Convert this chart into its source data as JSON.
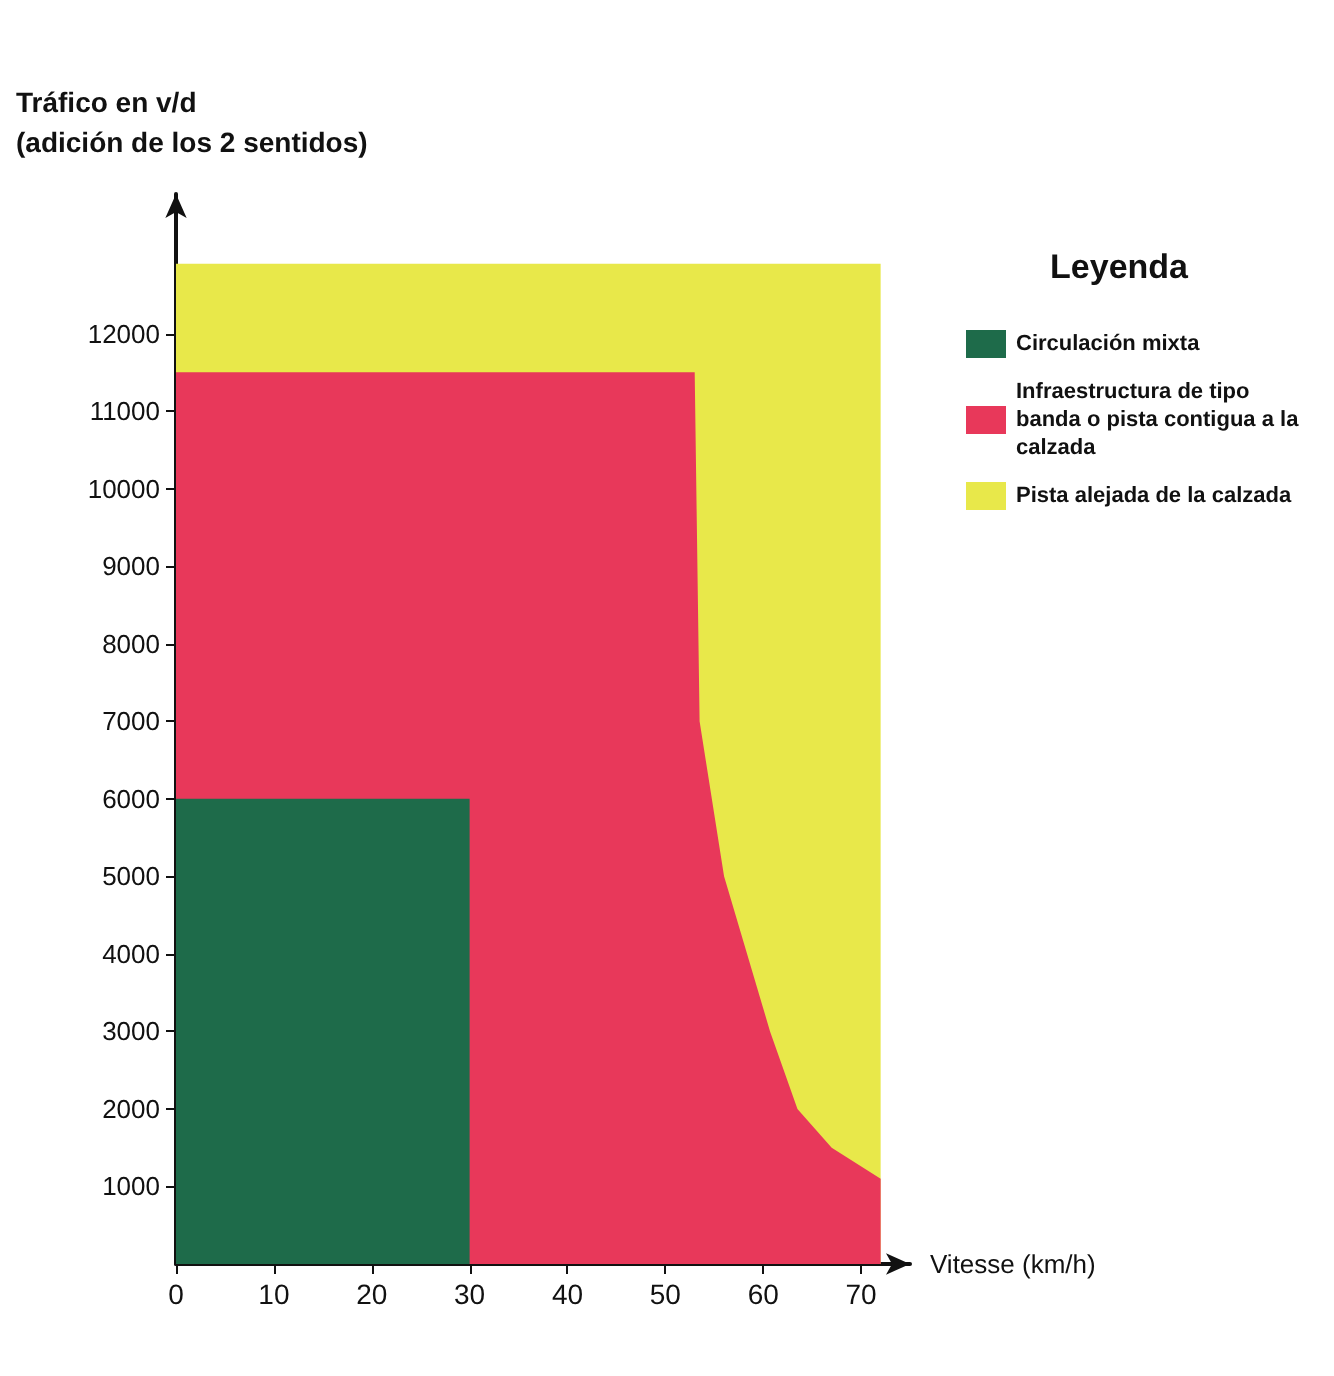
{
  "chart_data": {
    "type": "area",
    "stacked": true,
    "ylabel": "Tráfico en v/d\n(adición de los 2 sentidos)",
    "xlabel": "Vitesse (km/h)",
    "legend_title": "Leyenda",
    "x": [
      0,
      30,
      30,
      53,
      53.5,
      56,
      60.7,
      63.5,
      67,
      72
    ],
    "series": [
      {
        "name": "Circulación mixta",
        "color": "#1e6b4a",
        "values": [
          6000,
          6000,
          0,
          0,
          0,
          0,
          0,
          0,
          0,
          0
        ]
      },
      {
        "name": "Infraestructura de tipo banda o pista contigua a la calzada",
        "color": "#e8385a",
        "values": [
          5500,
          5500,
          11500,
          11500,
          7000,
          5000,
          3000,
          2000,
          1500,
          1100
        ]
      },
      {
        "name": "Pista alejada de la calzada",
        "color": "#e8e84a",
        "values": [
          1400,
          1400,
          1400,
          1400,
          5900,
          7900,
          9900,
          10900,
          11400,
          11800
        ]
      }
    ],
    "xlim": [
      0,
      75
    ],
    "xticks": [
      0,
      10,
      20,
      30,
      40,
      50,
      60,
      70
    ],
    "ylim": [
      0,
      13800
    ],
    "yticks": [
      1000,
      2000,
      3000,
      4000,
      5000,
      6000,
      7000,
      8000,
      9000,
      10000,
      11000,
      12000
    ],
    "grid": false,
    "legend": "right",
    "marker": "none"
  }
}
